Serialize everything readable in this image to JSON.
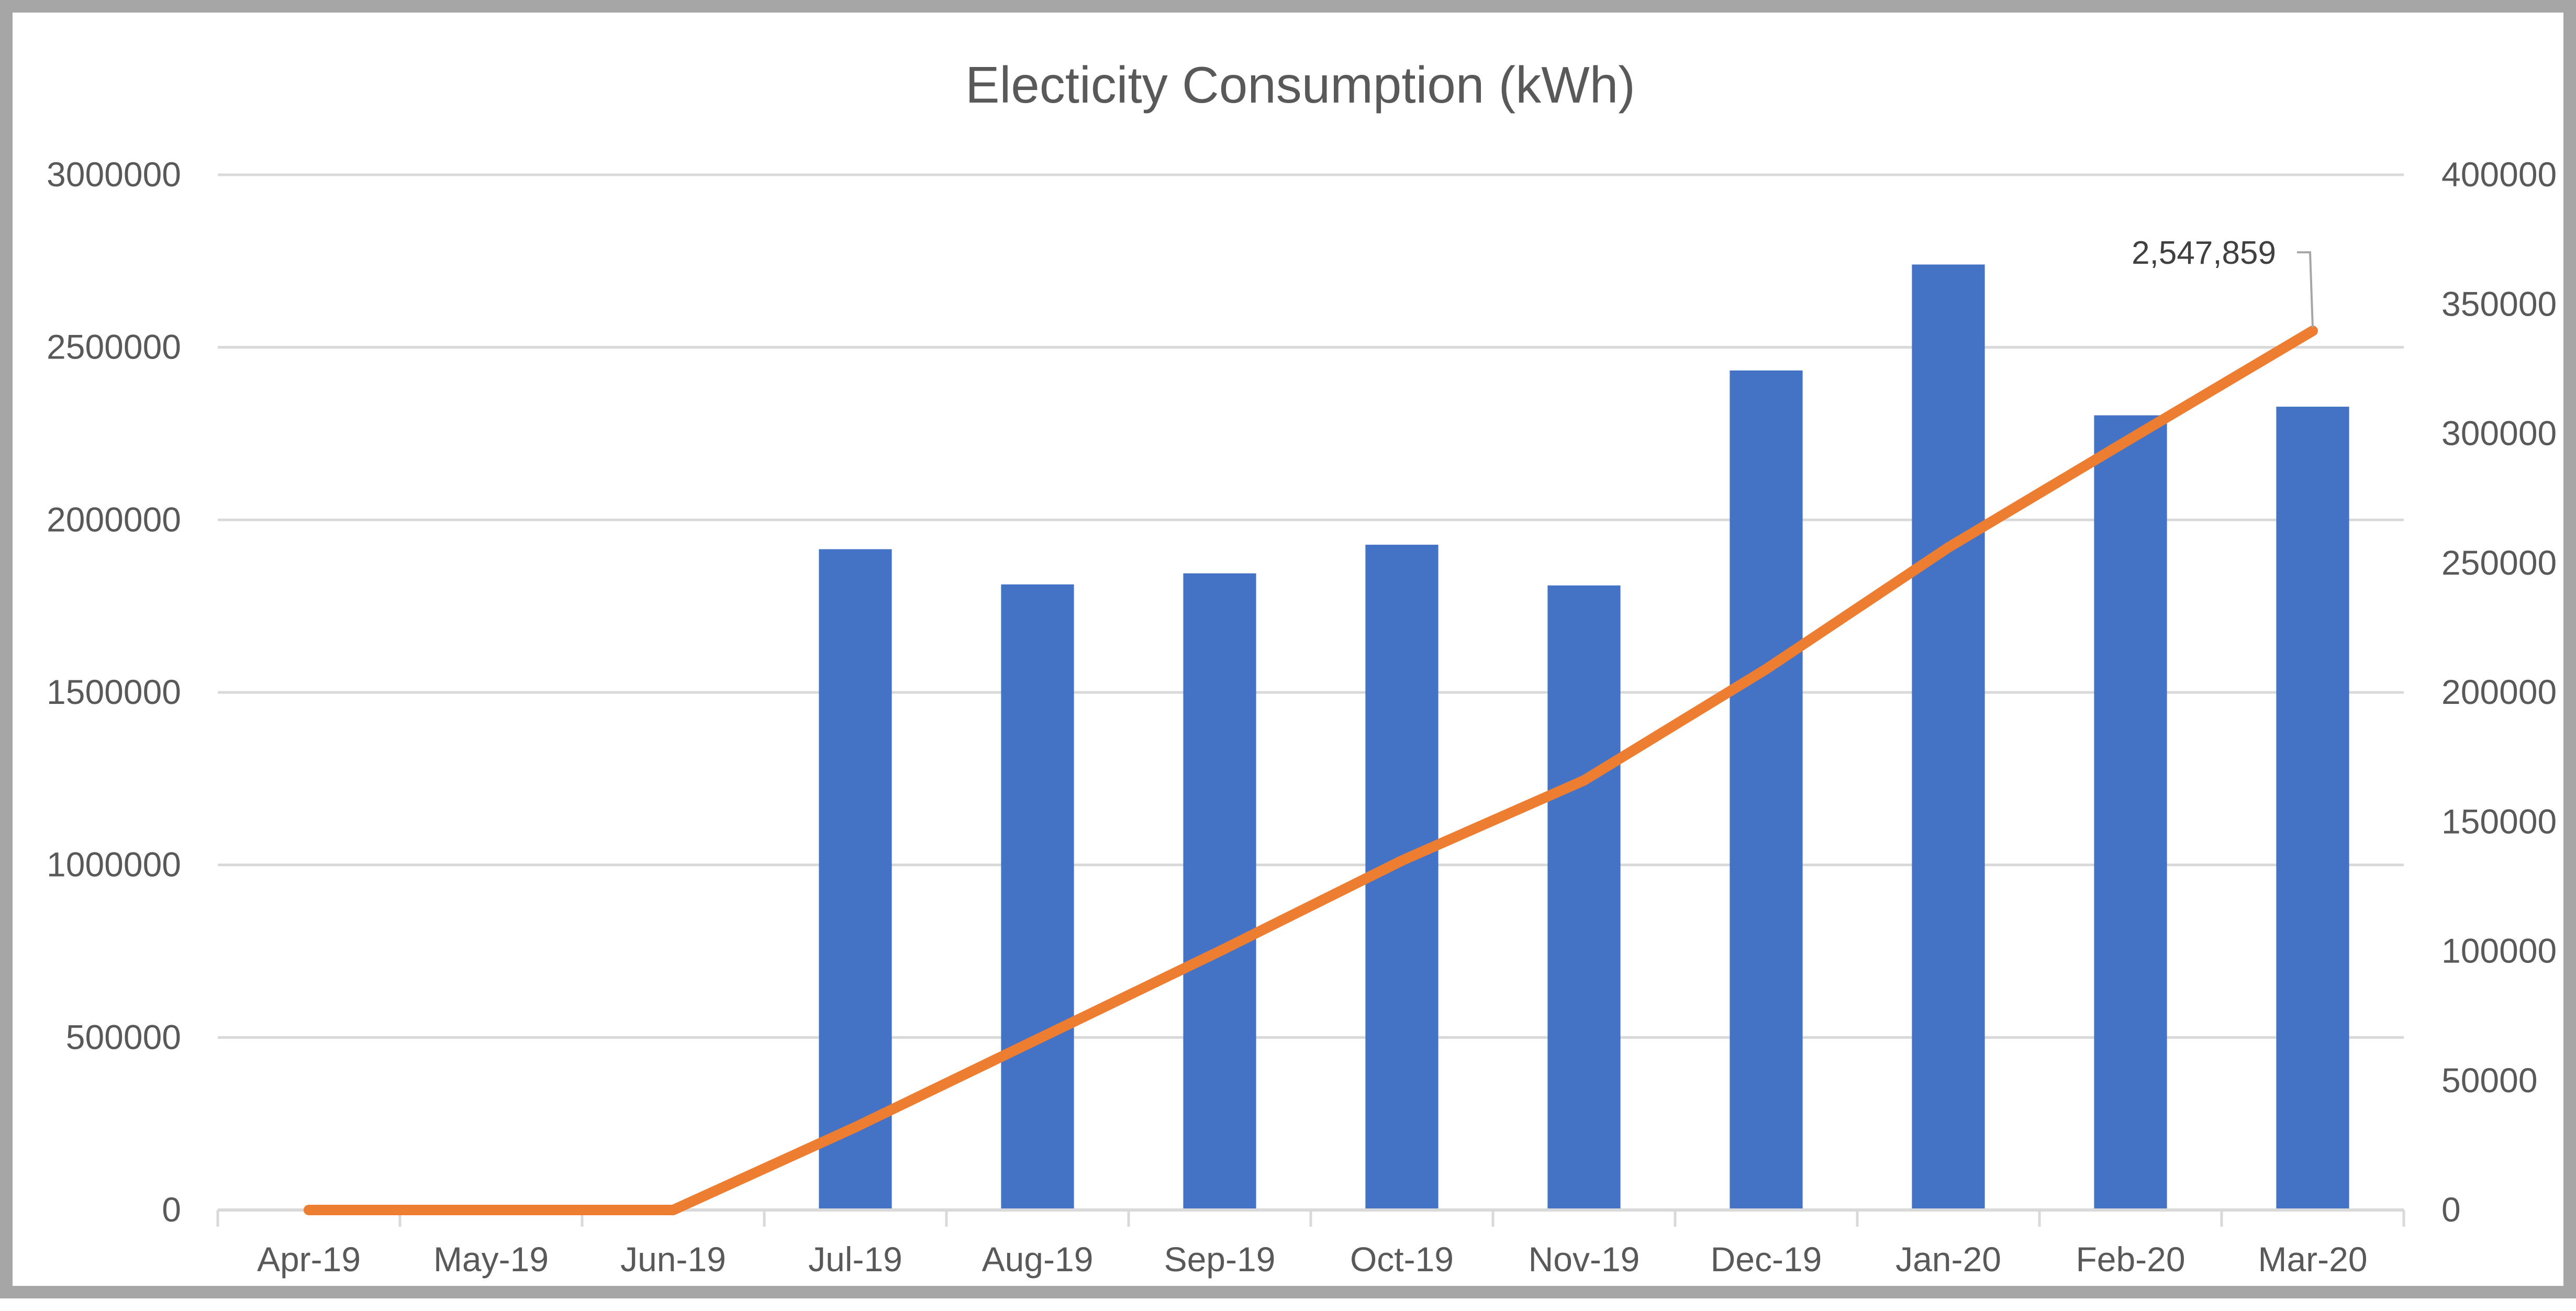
{
  "chart_data": {
    "type": "bar",
    "title": "Electicity Consumption (kWh)",
    "categories": [
      "Apr-19",
      "May-19",
      "Jun-19",
      "Jul-19",
      "Aug-19",
      "Sep-19",
      "Oct-19",
      "Nov-19",
      "Dec-19",
      "Jan-20",
      "Feb-20",
      "Mar-20"
    ],
    "series": [
      {
        "kind": "bar",
        "axis": "left",
        "color": "#4472C4",
        "values": [
          0,
          0,
          0,
          1915000,
          1813000,
          1845000,
          1928000,
          1810000,
          2433000,
          2740000,
          2303000,
          2328000
        ]
      },
      {
        "kind": "line",
        "axis": "right",
        "color": "#ED7D31",
        "values": [
          0,
          0,
          0,
          32000,
          66000,
          100000,
          135000,
          166000,
          209000,
          256000,
          298000,
          339715
        ]
      }
    ],
    "y_left": {
      "min": 0,
      "max": 3000000,
      "ticks": [
        "0",
        "500000",
        "1000000",
        "1500000",
        "2000000",
        "2500000",
        "3000000"
      ]
    },
    "y_right": {
      "min": 0,
      "max": 400000,
      "ticks": [
        "0",
        "50000",
        "100000",
        "150000",
        "200000",
        "250000",
        "300000",
        "350000",
        "400000"
      ]
    },
    "data_label": {
      "text": "2,547,859",
      "category": "Mar-20"
    },
    "grid": true,
    "legend": "none"
  }
}
